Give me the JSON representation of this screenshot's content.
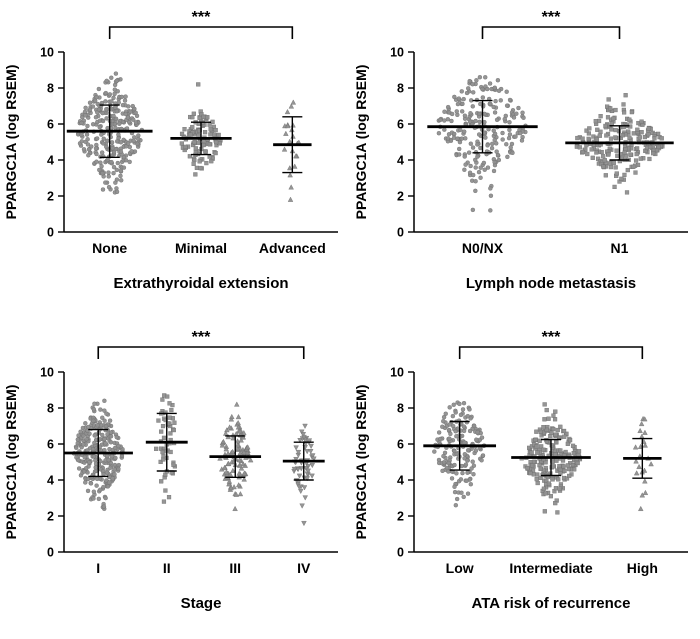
{
  "figure": {
    "background": "#ffffff",
    "marker_color": "#8f8f8f",
    "marker_edge_color": "#6f6f6f",
    "stat_line_color": "#000000",
    "axis_color": "#000000",
    "text_color": "#000000",
    "significance_label": "***"
  },
  "chart_data": [
    {
      "type": "scatter",
      "subtype": "column-scatter-with-mean-sd",
      "ylabel": "PPARGC1A (log RSEM)",
      "xlabel": "Extrathyroidal extension",
      "ylim": [
        0,
        10
      ],
      "yticks": [
        0,
        2,
        4,
        6,
        8,
        10
      ],
      "significance": {
        "label": "***",
        "from": 0,
        "to": 2
      },
      "groups": [
        {
          "label": "None",
          "marker": "circle",
          "n": 300,
          "mean": 5.6,
          "sd": 1.45,
          "min": 2.2,
          "max": 8.8
        },
        {
          "label": "Minimal",
          "marker": "square",
          "n": 110,
          "mean": 5.2,
          "sd": 0.9,
          "min": 3.2,
          "max": 8.2
        },
        {
          "label": "Advanced",
          "marker": "triangle",
          "n": 22,
          "mean": 4.85,
          "sd": 1.55,
          "min": 1.8,
          "max": 7.2
        }
      ]
    },
    {
      "type": "scatter",
      "subtype": "column-scatter-with-mean-sd",
      "ylabel": "PPARGC1A (log RSEM)",
      "xlabel": "Lymph node metastasis",
      "ylim": [
        0,
        10
      ],
      "yticks": [
        0,
        2,
        4,
        6,
        8,
        10
      ],
      "significance": {
        "label": "***",
        "from": 0,
        "to": 1
      },
      "groups": [
        {
          "label": "N0/NX",
          "marker": "circle",
          "n": 235,
          "mean": 5.85,
          "sd": 1.45,
          "min": 1.2,
          "max": 8.6
        },
        {
          "label": "N1",
          "marker": "square",
          "n": 225,
          "mean": 4.95,
          "sd": 0.95,
          "min": 2.2,
          "max": 7.6
        }
      ]
    },
    {
      "type": "scatter",
      "subtype": "column-scatter-with-mean-sd",
      "ylabel": "PPARGC1A (log RSEM)",
      "xlabel": "Stage",
      "ylim": [
        0,
        10
      ],
      "yticks": [
        0,
        2,
        4,
        6,
        8,
        10
      ],
      "significance": {
        "label": "***",
        "from": 0,
        "to": 3
      },
      "groups": [
        {
          "label": "I",
          "marker": "circle",
          "n": 285,
          "mean": 5.5,
          "sd": 1.3,
          "min": 2.4,
          "max": 8.4
        },
        {
          "label": "II",
          "marker": "square",
          "n": 55,
          "mean": 6.1,
          "sd": 1.6,
          "min": 2.8,
          "max": 8.7
        },
        {
          "label": "III",
          "marker": "triangle",
          "n": 115,
          "mean": 5.3,
          "sd": 1.15,
          "min": 2.4,
          "max": 8.2
        },
        {
          "label": "IV",
          "marker": "triangle-down",
          "n": 55,
          "mean": 5.05,
          "sd": 1.05,
          "min": 1.6,
          "max": 7.0
        }
      ]
    },
    {
      "type": "scatter",
      "subtype": "column-scatter-with-mean-sd",
      "ylabel": "PPARGC1A (log RSEM)",
      "xlabel": "ATA risk of recurrence",
      "ylim": [
        0,
        10
      ],
      "yticks": [
        0,
        2,
        4,
        6,
        8,
        10
      ],
      "significance": {
        "label": "***",
        "from": 0,
        "to": 2
      },
      "groups": [
        {
          "label": "Low",
          "marker": "circle",
          "n": 180,
          "mean": 5.9,
          "sd": 1.35,
          "min": 2.6,
          "max": 8.3
        },
        {
          "label": "Intermediate",
          "marker": "square",
          "n": 230,
          "mean": 5.25,
          "sd": 1.0,
          "min": 2.2,
          "max": 8.2
        },
        {
          "label": "High",
          "marker": "triangle",
          "n": 22,
          "mean": 5.2,
          "sd": 1.1,
          "min": 2.4,
          "max": 7.4
        }
      ]
    }
  ]
}
